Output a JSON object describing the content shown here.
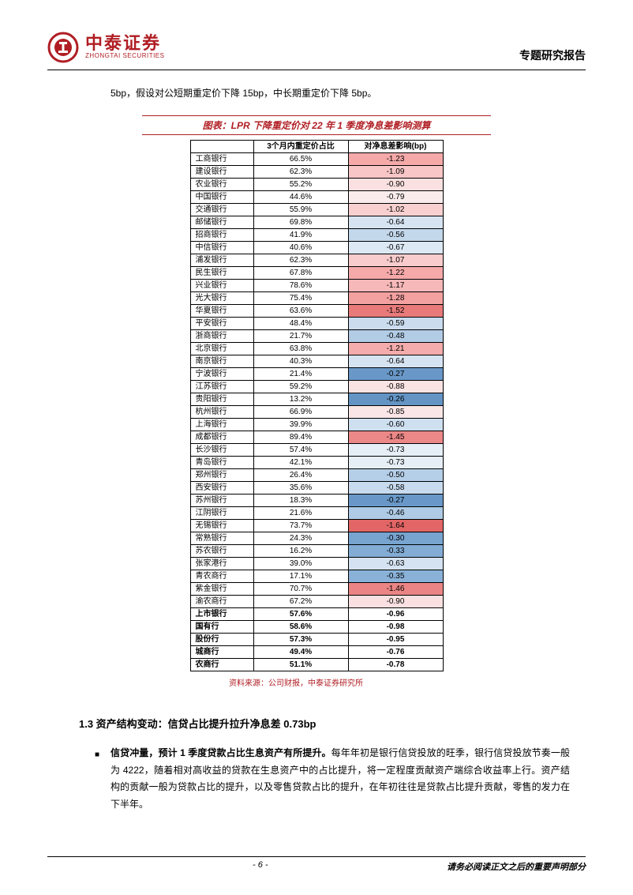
{
  "header": {
    "logo_cn": "中泰证券",
    "logo_en": "ZHONGTAI SECURITIES",
    "report_type": "专题研究报告"
  },
  "intro": "5bp，假设对公短期重定价下降 15bp，中长期重定价下降 5bp。",
  "chart": {
    "title": "图表：LPR 下降重定价对 22 年 1 季度净息差影响测算",
    "columns": [
      "",
      "3个月内重定价占比",
      "对净息差影响(bp)"
    ],
    "rows": [
      {
        "name": "工商银行",
        "ratio": "66.5%",
        "impact": "-1.23",
        "color": "#f5a9a9"
      },
      {
        "name": "建设银行",
        "ratio": "62.3%",
        "impact": "-1.09",
        "color": "#f8c6c6"
      },
      {
        "name": "农业银行",
        "ratio": "55.2%",
        "impact": "-0.90",
        "color": "#fae0e0"
      },
      {
        "name": "中国银行",
        "ratio": "44.6%",
        "impact": "-0.79",
        "color": "#faecec"
      },
      {
        "name": "交通银行",
        "ratio": "55.9%",
        "impact": "-1.02",
        "color": "#f8d0d0"
      },
      {
        "name": "邮储银行",
        "ratio": "69.8%",
        "impact": "-0.64",
        "color": "#d6e4f2"
      },
      {
        "name": "招商银行",
        "ratio": "41.9%",
        "impact": "-0.56",
        "color": "#c4d8ec"
      },
      {
        "name": "中信银行",
        "ratio": "40.6%",
        "impact": "-0.67",
        "color": "#dce8f4"
      },
      {
        "name": "浦发银行",
        "ratio": "62.3%",
        "impact": "-1.07",
        "color": "#f8cccc"
      },
      {
        "name": "民生银行",
        "ratio": "67.8%",
        "impact": "-1.22",
        "color": "#f5a9a9"
      },
      {
        "name": "兴业银行",
        "ratio": "78.6%",
        "impact": "-1.17",
        "color": "#f6b8b8"
      },
      {
        "name": "光大银行",
        "ratio": "75.4%",
        "impact": "-1.28",
        "color": "#f3a0a0"
      },
      {
        "name": "华夏银行",
        "ratio": "63.6%",
        "impact": "-1.52",
        "color": "#e87a7a"
      },
      {
        "name": "平安银行",
        "ratio": "48.4%",
        "impact": "-0.59",
        "color": "#cadcee"
      },
      {
        "name": "浙商银行",
        "ratio": "21.7%",
        "impact": "-0.48",
        "color": "#b2cce6"
      },
      {
        "name": "北京银行",
        "ratio": "63.8%",
        "impact": "-1.21",
        "color": "#f5acac"
      },
      {
        "name": "南京银行",
        "ratio": "40.3%",
        "impact": "-0.64",
        "color": "#d6e4f2"
      },
      {
        "name": "宁波银行",
        "ratio": "21.4%",
        "impact": "-0.27",
        "color": "#6998c8"
      },
      {
        "name": "江苏银行",
        "ratio": "59.2%",
        "impact": "-0.88",
        "color": "#fae3e3"
      },
      {
        "name": "贵阳银行",
        "ratio": "13.2%",
        "impact": "-0.26",
        "color": "#6494c4"
      },
      {
        "name": "杭州银行",
        "ratio": "66.9%",
        "impact": "-0.85",
        "color": "#fae6e6"
      },
      {
        "name": "上海银行",
        "ratio": "39.9%",
        "impact": "-0.60",
        "color": "#cedff0"
      },
      {
        "name": "成都银行",
        "ratio": "89.4%",
        "impact": "-1.45",
        "color": "#ec8888"
      },
      {
        "name": "长沙银行",
        "ratio": "57.4%",
        "impact": "-0.73",
        "color": "#e6eef6"
      },
      {
        "name": "青岛银行",
        "ratio": "42.1%",
        "impact": "-0.73",
        "color": "#e6eef6"
      },
      {
        "name": "郑州银行",
        "ratio": "26.4%",
        "impact": "-0.50",
        "color": "#b6cfe8"
      },
      {
        "name": "西安银行",
        "ratio": "35.6%",
        "impact": "-0.58",
        "color": "#c8dbee"
      },
      {
        "name": "苏州银行",
        "ratio": "18.3%",
        "impact": "-0.27",
        "color": "#6998c8"
      },
      {
        "name": "江阴银行",
        "ratio": "21.6%",
        "impact": "-0.46",
        "color": "#aecae4"
      },
      {
        "name": "无锡银行",
        "ratio": "73.7%",
        "impact": "-1.64",
        "color": "#e26666"
      },
      {
        "name": "常熟银行",
        "ratio": "24.3%",
        "impact": "-0.30",
        "color": "#78a4d0"
      },
      {
        "name": "苏农银行",
        "ratio": "16.2%",
        "impact": "-0.33",
        "color": "#82acd4"
      },
      {
        "name": "张家港行",
        "ratio": "39.0%",
        "impact": "-0.63",
        "color": "#d4e2f1"
      },
      {
        "name": "青农商行",
        "ratio": "17.1%",
        "impact": "-0.35",
        "color": "#8ab2d8"
      },
      {
        "name": "紫金银行",
        "ratio": "70.7%",
        "impact": "-1.46",
        "color": "#eb8585"
      },
      {
        "name": "渝农商行",
        "ratio": "67.2%",
        "impact": "-0.90",
        "color": "#fae0e0"
      }
    ],
    "summary": [
      {
        "name": "上市银行",
        "ratio": "57.6%",
        "impact": "-0.96"
      },
      {
        "name": "国有行",
        "ratio": "58.6%",
        "impact": "-0.98"
      },
      {
        "name": "股份行",
        "ratio": "57.3%",
        "impact": "-0.95"
      },
      {
        "name": "城商行",
        "ratio": "49.4%",
        "impact": "-0.76"
      },
      {
        "name": "农商行",
        "ratio": "51.1%",
        "impact": "-0.78"
      }
    ],
    "source": "资料来源：公司财报，中泰证券研究所"
  },
  "section": {
    "heading": "1.3 资产结构变动：信贷占比提升拉升净息差 0.73bp",
    "para_bold": "信贷冲量，预计 1 季度贷款占比生息资产有所提升。",
    "para_rest": "每年年初是银行信贷投放的旺季，银行信贷投放节奏一般为 4222，随着相对高收益的贷款在生息资产中的占比提升，将一定程度贡献资产端综合收益率上行。资产结构的贡献一般为贷款占比的提升，以及零售贷款占比的提升，在年初往往是贷款占比提升贡献，零售的发力在下半年。"
  },
  "footer": {
    "page": "- 6 -",
    "note": "请务必阅读正文之后的重要声明部分"
  }
}
